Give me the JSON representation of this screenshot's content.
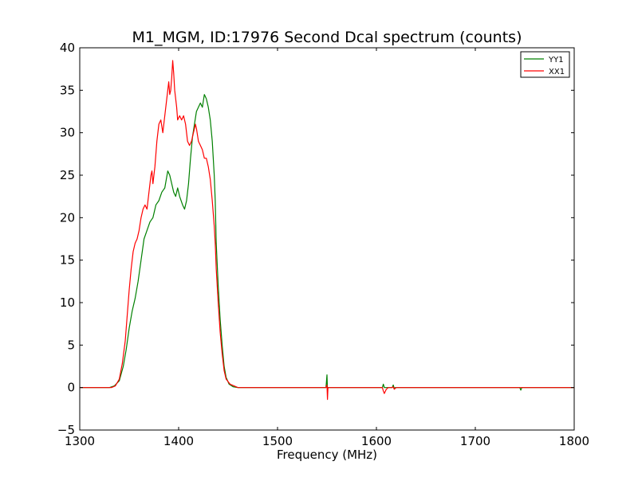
{
  "chart_data": {
    "type": "line",
    "title": "M1_MGM, ID:17976 Second Dcal spectrum (counts)",
    "xlabel": "Frequency (MHz)",
    "ylabel": "",
    "xlim": [
      1300,
      1800
    ],
    "ylim": [
      -5,
      40
    ],
    "x_ticks": [
      1300,
      1400,
      1500,
      1600,
      1700,
      1800
    ],
    "x_tick_labels": [
      "1300",
      "1400",
      "1500",
      "1600",
      "1700",
      "1800"
    ],
    "y_ticks": [
      -5,
      0,
      5,
      10,
      15,
      20,
      25,
      30,
      35,
      40
    ],
    "y_tick_labels": [
      "−5",
      "0",
      "5",
      "10",
      "15",
      "20",
      "25",
      "30",
      "35",
      "40"
    ],
    "grid": false,
    "legend_position": "top-right",
    "series": [
      {
        "name": "YY1",
        "color": "#008000",
        "points": [
          [
            1300,
            0
          ],
          [
            1330,
            0
          ],
          [
            1335,
            0.2
          ],
          [
            1340,
            0.8
          ],
          [
            1344,
            2.5
          ],
          [
            1347,
            4.5
          ],
          [
            1350,
            7
          ],
          [
            1353,
            9
          ],
          [
            1356,
            10.5
          ],
          [
            1359,
            12.5
          ],
          [
            1362,
            15
          ],
          [
            1365,
            17.5
          ],
          [
            1368,
            18.5
          ],
          [
            1371,
            19.5
          ],
          [
            1374,
            20
          ],
          [
            1377,
            21.5
          ],
          [
            1380,
            22
          ],
          [
            1383,
            23
          ],
          [
            1386,
            23.5
          ],
          [
            1389,
            25.5
          ],
          [
            1391,
            25
          ],
          [
            1393,
            24
          ],
          [
            1395,
            23
          ],
          [
            1397,
            22.5
          ],
          [
            1399,
            23.5
          ],
          [
            1401,
            22.5
          ],
          [
            1404,
            21.5
          ],
          [
            1406,
            21
          ],
          [
            1408,
            22
          ],
          [
            1410,
            24
          ],
          [
            1412,
            27
          ],
          [
            1414,
            29.5
          ],
          [
            1416,
            31
          ],
          [
            1418,
            32.5
          ],
          [
            1420,
            33
          ],
          [
            1422,
            33.5
          ],
          [
            1424,
            33
          ],
          [
            1426,
            34.5
          ],
          [
            1428,
            34
          ],
          [
            1430,
            33
          ],
          [
            1432,
            31.5
          ],
          [
            1434,
            29
          ],
          [
            1436,
            25
          ],
          [
            1437,
            22
          ],
          [
            1438,
            17
          ],
          [
            1440,
            12
          ],
          [
            1442,
            8
          ],
          [
            1444,
            5
          ],
          [
            1446,
            2.5
          ],
          [
            1448,
            1.2
          ],
          [
            1451,
            0.4
          ],
          [
            1455,
            0.1
          ],
          [
            1460,
            0
          ],
          [
            1549,
            0
          ],
          [
            1550,
            1.5
          ],
          [
            1550.5,
            -0.3
          ],
          [
            1551,
            0
          ],
          [
            1606,
            0
          ],
          [
            1607,
            0.4
          ],
          [
            1608,
            0
          ],
          [
            1616,
            0
          ],
          [
            1617,
            0.3
          ],
          [
            1618,
            -0.1
          ],
          [
            1619,
            0
          ],
          [
            1745,
            0
          ],
          [
            1746,
            -0.3
          ],
          [
            1747,
            0
          ],
          [
            1800,
            0
          ]
        ]
      },
      {
        "name": "XX1",
        "color": "#ff0000",
        "points": [
          [
            1300,
            0
          ],
          [
            1332,
            0
          ],
          [
            1336,
            0.2
          ],
          [
            1340,
            1
          ],
          [
            1343,
            2.8
          ],
          [
            1346,
            5.5
          ],
          [
            1348,
            8.5
          ],
          [
            1350,
            11.5
          ],
          [
            1352,
            14
          ],
          [
            1354,
            16
          ],
          [
            1356,
            17
          ],
          [
            1358,
            17.5
          ],
          [
            1360,
            18.5
          ],
          [
            1362,
            20
          ],
          [
            1364,
            21
          ],
          [
            1366,
            21.5
          ],
          [
            1368,
            21
          ],
          [
            1370,
            23
          ],
          [
            1372,
            25
          ],
          [
            1373,
            25.5
          ],
          [
            1374,
            24
          ],
          [
            1376,
            26
          ],
          [
            1378,
            29
          ],
          [
            1380,
            31
          ],
          [
            1382,
            31.5
          ],
          [
            1384,
            30
          ],
          [
            1386,
            32
          ],
          [
            1388,
            34
          ],
          [
            1389,
            35
          ],
          [
            1390,
            36
          ],
          [
            1391,
            34.5
          ],
          [
            1392,
            35
          ],
          [
            1393,
            36.5
          ],
          [
            1394,
            38.5
          ],
          [
            1395,
            37
          ],
          [
            1396,
            35
          ],
          [
            1398,
            33
          ],
          [
            1399,
            31.5
          ],
          [
            1401,
            32
          ],
          [
            1403,
            31.5
          ],
          [
            1405,
            32
          ],
          [
            1407,
            31
          ],
          [
            1409,
            29
          ],
          [
            1411,
            28.5
          ],
          [
            1413,
            29
          ],
          [
            1415,
            30
          ],
          [
            1416,
            30.5
          ],
          [
            1417,
            31
          ],
          [
            1418,
            30.5
          ],
          [
            1420,
            29
          ],
          [
            1422,
            28.5
          ],
          [
            1424,
            28
          ],
          [
            1426,
            27
          ],
          [
            1428,
            27
          ],
          [
            1430,
            26
          ],
          [
            1432,
            24.5
          ],
          [
            1434,
            22
          ],
          [
            1436,
            19
          ],
          [
            1437,
            17
          ],
          [
            1438,
            14
          ],
          [
            1440,
            10
          ],
          [
            1442,
            6.5
          ],
          [
            1444,
            4
          ],
          [
            1446,
            2
          ],
          [
            1448,
            1
          ],
          [
            1452,
            0.4
          ],
          [
            1456,
            0.2
          ],
          [
            1460,
            0
          ],
          [
            1549,
            0
          ],
          [
            1550,
            0.3
          ],
          [
            1550.5,
            -1.4
          ],
          [
            1551,
            0
          ],
          [
            1606,
            0
          ],
          [
            1607,
            -0.4
          ],
          [
            1608,
            -0.7
          ],
          [
            1610,
            -0.2
          ],
          [
            1612,
            0
          ],
          [
            1616,
            0
          ],
          [
            1617,
            0.1
          ],
          [
            1618,
            -0.2
          ],
          [
            1620,
            0
          ],
          [
            1800,
            0
          ]
        ]
      }
    ]
  }
}
